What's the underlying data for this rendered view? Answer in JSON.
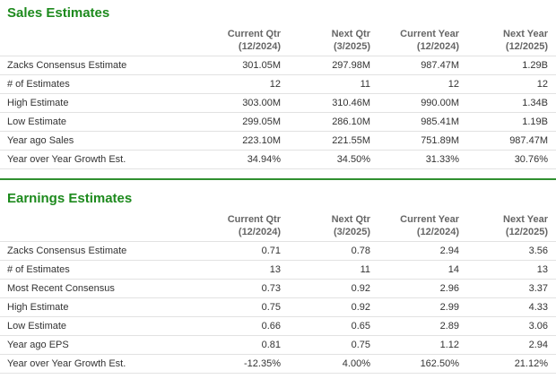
{
  "sections": [
    {
      "title": "Sales Estimates",
      "headers": [
        [
          "Current Qtr",
          "(12/2024)"
        ],
        [
          "Next Qtr",
          "(3/2025)"
        ],
        [
          "Current Year",
          "(12/2024)"
        ],
        [
          "Next Year",
          "(12/2025)"
        ]
      ],
      "rows": [
        {
          "label": "Zacks Consensus Estimate",
          "cells": [
            "301.05M",
            "297.98M",
            "987.47M",
            "1.29B"
          ]
        },
        {
          "label": "# of Estimates",
          "cells": [
            "12",
            "11",
            "12",
            "12"
          ]
        },
        {
          "label": "High Estimate",
          "cells": [
            "303.00M",
            "310.46M",
            "990.00M",
            "1.34B"
          ]
        },
        {
          "label": "Low Estimate",
          "cells": [
            "299.05M",
            "286.10M",
            "985.41M",
            "1.19B"
          ]
        },
        {
          "label": "Year ago Sales",
          "cells": [
            "223.10M",
            "221.55M",
            "751.89M",
            "987.47M"
          ]
        },
        {
          "label": "Year over Year Growth Est.",
          "cells": [
            "34.94%",
            "34.50%",
            "31.33%",
            "30.76%"
          ]
        }
      ]
    },
    {
      "title": "Earnings Estimates",
      "headers": [
        [
          "Current Qtr",
          "(12/2024)"
        ],
        [
          "Next Qtr",
          "(3/2025)"
        ],
        [
          "Current Year",
          "(12/2024)"
        ],
        [
          "Next Year",
          "(12/2025)"
        ]
      ],
      "rows": [
        {
          "label": "Zacks Consensus Estimate",
          "cells": [
            "0.71",
            "0.78",
            "2.94",
            "3.56"
          ]
        },
        {
          "label": "# of Estimates",
          "cells": [
            "13",
            "11",
            "14",
            "13"
          ]
        },
        {
          "label": "Most Recent Consensus",
          "cells": [
            "0.73",
            "0.92",
            "2.96",
            "3.37"
          ]
        },
        {
          "label": "High Estimate",
          "cells": [
            "0.75",
            "0.92",
            "2.99",
            "4.33"
          ]
        },
        {
          "label": "Low Estimate",
          "cells": [
            "0.66",
            "0.65",
            "2.89",
            "3.06"
          ]
        },
        {
          "label": "Year ago EPS",
          "cells": [
            "0.81",
            "0.75",
            "1.12",
            "2.94"
          ]
        },
        {
          "label": "Year over Year Growth Est.",
          "cells": [
            "-12.35%",
            "4.00%",
            "162.50%",
            "21.12%"
          ]
        }
      ]
    }
  ]
}
